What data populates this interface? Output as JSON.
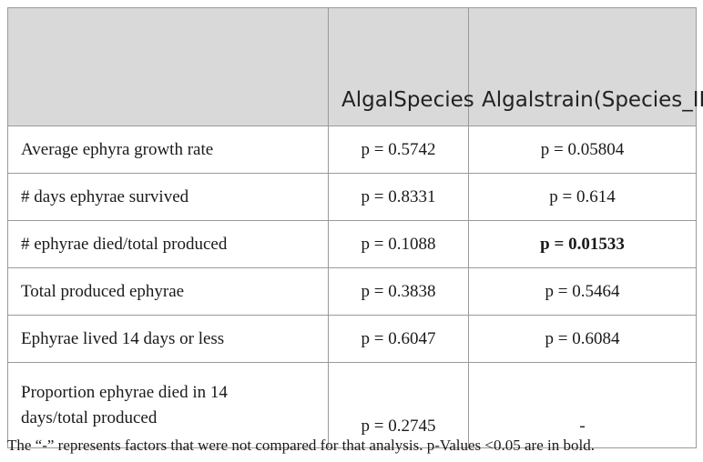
{
  "table": {
    "header": [
      {
        "lines": []
      },
      {
        "lines": [
          "Algal",
          "Species"
        ]
      },
      {
        "lines": [
          "Algal",
          "strain",
          "(Species_ID)"
        ]
      }
    ],
    "rows": [
      [
        {
          "lines": [
            "Average ephyra growth rate"
          ]
        },
        "p = 0.5742",
        "p = 0.05804"
      ],
      [
        {
          "lines": [
            "# days ephyrae survived"
          ]
        },
        "p = 0.8331",
        "p = 0.614"
      ],
      [
        {
          "lines": [
            "# ephyrae died/total produced"
          ]
        },
        "p = 0.1088",
        "p = 0.01533"
      ],
      [
        {
          "lines": [
            "Total produced ephyrae"
          ]
        },
        "p = 0.3838",
        "p = 0.5464"
      ],
      [
        {
          "lines": [
            "Ephyrae lived 14 days or less"
          ]
        },
        "p = 0.6047",
        "p = 0.6084"
      ],
      [
        {
          "lines": [
            "Proportion ephyrae died in 14",
            "days/total produced"
          ]
        },
        "p = 0.2745",
        "-"
      ]
    ],
    "bold_cells": [
      "2.2"
    ]
  },
  "footnote": "The “-” represents factors that were not compared for that analysis. p-Values <0.05 are in bold."
}
